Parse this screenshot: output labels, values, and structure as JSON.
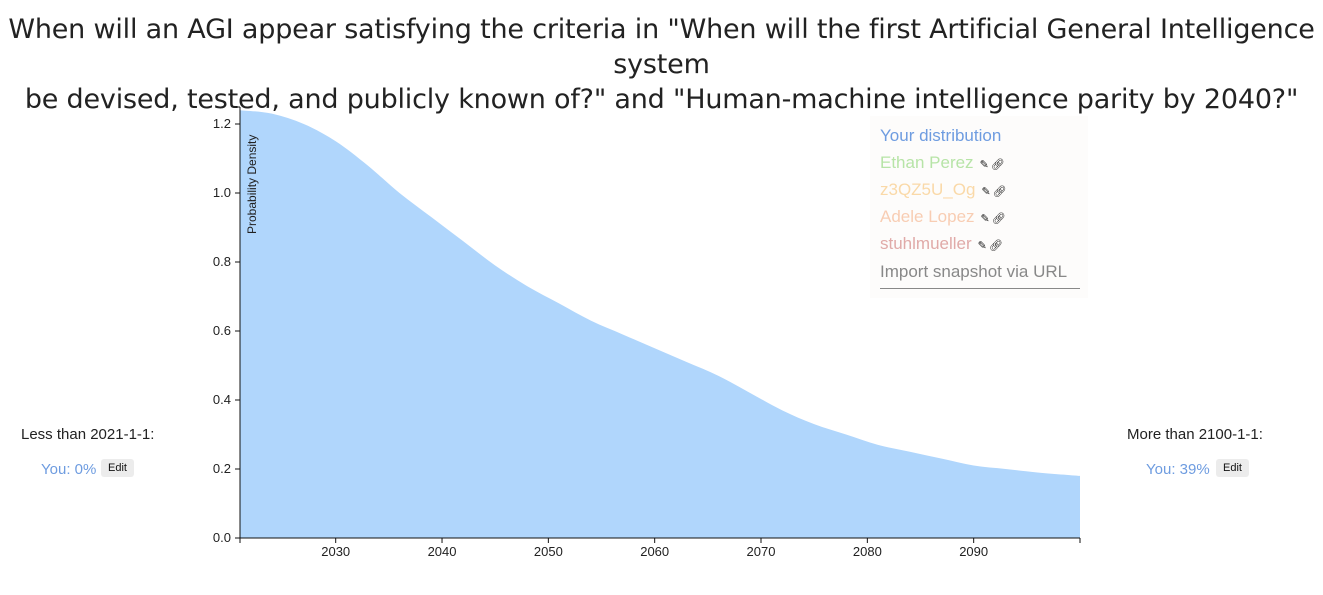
{
  "title_lines": [
    "When will an AGI appear satisfying the criteria in \"When will the first Artificial General Intelligence system",
    "be devised, tested, and publicly known of?\" and \"Human-machine intelligence parity by 2040?\""
  ],
  "legend": {
    "entries": [
      {
        "label": "Your distribution",
        "color": "#6e9ce0",
        "tools": false
      },
      {
        "label": "Ethan Perez",
        "color": "#b7e4a7",
        "tools": true
      },
      {
        "label": "z3QZ5U_Og",
        "color": "#fad9a8",
        "tools": true
      },
      {
        "label": "Adele Lopez",
        "color": "#f8cdb3",
        "tools": true
      },
      {
        "label": "stuhlmueller",
        "color": "#e0aaa8",
        "tools": true
      }
    ],
    "edit_icon": "pencil-icon",
    "link_icon": "link-icon",
    "import_label": "Import snapshot via URL"
  },
  "left_side": {
    "label": "Less than 2021-1-1:",
    "value": "You: 0%",
    "edit_label": "Edit"
  },
  "right_side": {
    "label": "More than 2100-1-1:",
    "value": "You: 39%",
    "edit_label": "Edit"
  },
  "chart_data": {
    "type": "area",
    "title": "",
    "xlabel": "",
    "ylabel": "Probability Density",
    "xlim": [
      2021,
      2100
    ],
    "ylim": [
      0,
      1.25
    ],
    "x_ticks": [
      2030,
      2040,
      2050,
      2060,
      2070,
      2080,
      2090
    ],
    "y_ticks": [
      0.0,
      0.2,
      0.4,
      0.6,
      0.8,
      1.0,
      1.2
    ],
    "y_tick_labels": [
      "0.0",
      "0.2",
      "0.4",
      "0.6",
      "0.8",
      "1.0",
      "1.2"
    ],
    "fill_color": "#b0d6fc",
    "grid": false,
    "series": [
      {
        "x": [
          2021,
          2024,
          2027,
          2030,
          2033,
          2036,
          2039,
          2042,
          2045,
          2048,
          2051,
          2054,
          2057,
          2060,
          2063,
          2066,
          2069,
          2072,
          2075,
          2078,
          2081,
          2084,
          2087,
          2090,
          2093,
          2096,
          2100
        ],
        "y": [
          1.24,
          1.23,
          1.2,
          1.15,
          1.08,
          1.0,
          0.93,
          0.86,
          0.79,
          0.73,
          0.68,
          0.63,
          0.59,
          0.55,
          0.51,
          0.47,
          0.42,
          0.37,
          0.33,
          0.3,
          0.27,
          0.25,
          0.23,
          0.21,
          0.2,
          0.19,
          0.18
        ]
      }
    ]
  }
}
